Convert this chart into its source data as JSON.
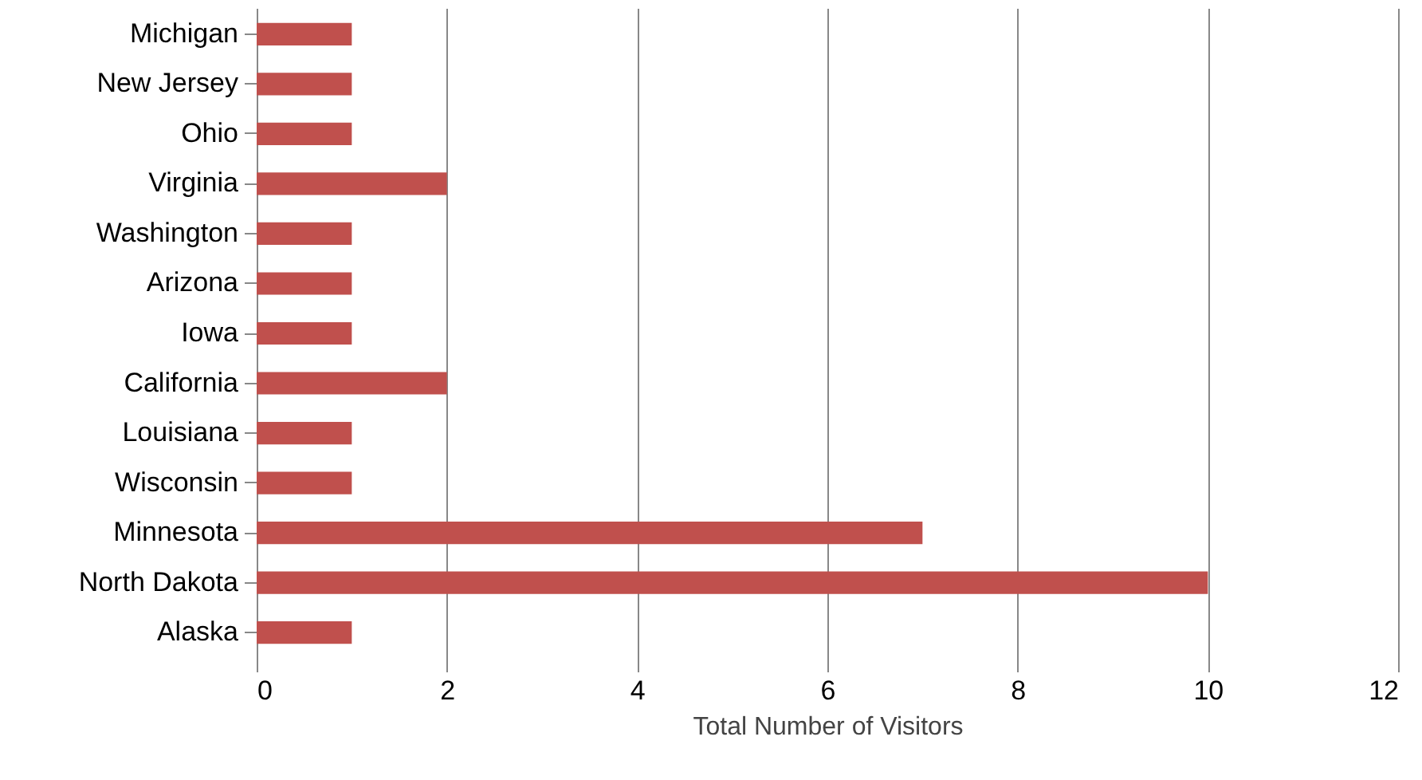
{
  "chart_data": {
    "type": "bar",
    "orientation": "horizontal",
    "xlabel": "Total Number of Visitors",
    "categories": [
      "Michigan",
      "New Jersey",
      "Ohio",
      "Virginia",
      "Washington",
      "Arizona",
      "Iowa",
      "California",
      "Louisiana",
      "Wisconsin",
      "Minnesota",
      "North Dakota",
      "Alaska"
    ],
    "values": [
      1,
      1,
      1,
      2,
      1,
      1,
      1,
      2,
      1,
      1,
      7,
      10,
      1
    ],
    "color": "#c0504d",
    "xlim": [
      0,
      12
    ],
    "xticks": [
      0,
      2,
      4,
      6,
      8,
      10,
      12
    ],
    "grid": "x"
  }
}
